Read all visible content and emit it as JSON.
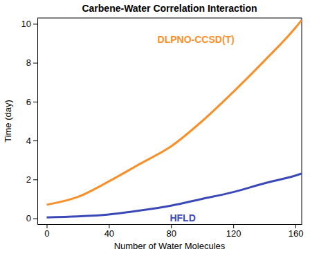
{
  "chart_data": {
    "type": "line",
    "title": "Carbene-Water Correlation Interaction",
    "x_label": "Number of Water Molecules",
    "y_label": "Time (day)",
    "x": [
      0,
      20,
      40,
      60,
      80,
      100,
      120,
      140,
      160,
      164
    ],
    "series": [
      {
        "name": "DLPNO-CCSD(T)",
        "color": "#f7902a",
        "values": [
          0.7,
          1.1,
          1.9,
          2.8,
          3.7,
          5.0,
          6.5,
          8.1,
          9.8,
          10.2
        ]
      },
      {
        "name": "HFLD",
        "color": "#3b48b8",
        "values": [
          0.05,
          0.1,
          0.2,
          0.4,
          0.65,
          1.0,
          1.35,
          1.8,
          2.2,
          2.3
        ]
      }
    ],
    "xlim": [
      -6,
      164
    ],
    "ylim": [
      -0.3,
      10.3
    ],
    "xticks": [
      0,
      40,
      80,
      120,
      160
    ],
    "yticks": [
      0,
      2,
      4,
      6,
      8,
      10
    ],
    "grid": false
  }
}
